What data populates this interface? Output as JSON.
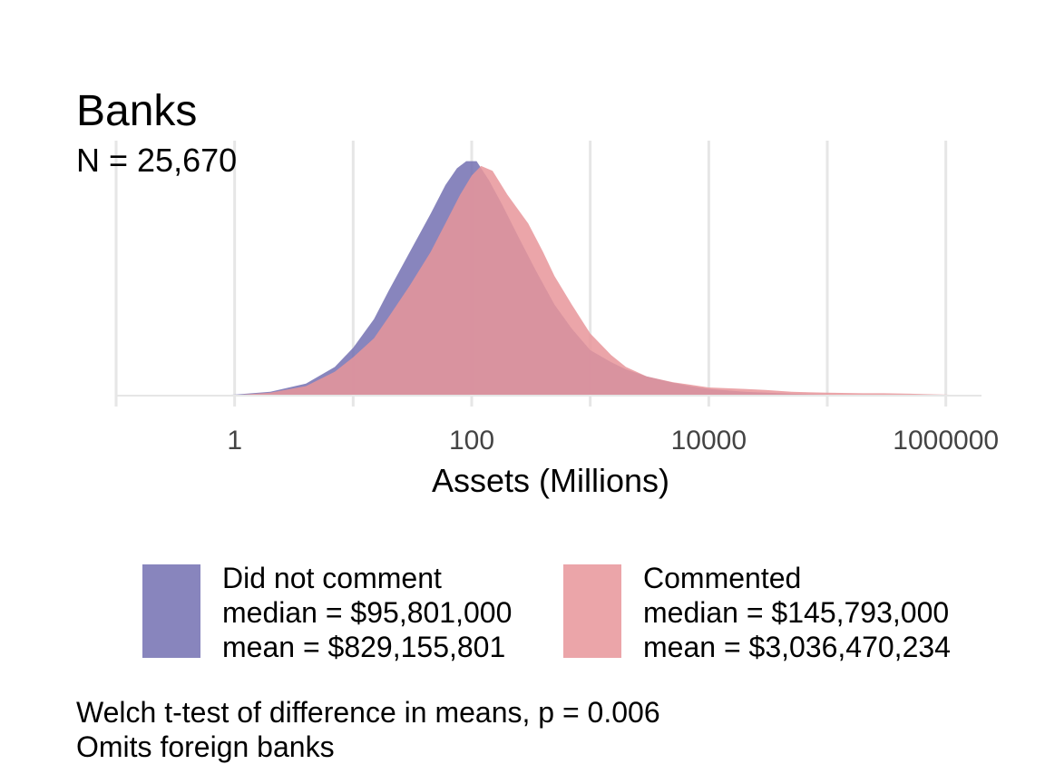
{
  "chart_data": {
    "type": "area",
    "title": "Banks",
    "subtitle": "N = 25,670",
    "xlabel": "Assets (Millions)",
    "ylabel": "",
    "x_scale": "log10",
    "xlim": [
      0.1,
      2000000
    ],
    "ylim": [
      0,
      0.55
    ],
    "x_ticks": [
      {
        "value": 1,
        "label": "1"
      },
      {
        "value": 100,
        "label": "100"
      },
      {
        "value": 10000,
        "label": "10000"
      },
      {
        "value": 1000000,
        "label": "1000000"
      }
    ],
    "x_minor_gridlines": [
      0.1,
      10,
      1000,
      100000
    ],
    "grid": true,
    "legend_position": "bottom",
    "series": [
      {
        "name": "Did not comment",
        "stats": [
          "median = $95,801,000",
          "mean = $829,155,801"
        ],
        "color": "#6e6aaf",
        "opacity": 0.82,
        "x": [
          0.1,
          0.3,
          1,
          2,
          4,
          7,
          10,
          15,
          20,
          30,
          45,
          60,
          75,
          90,
          110,
          140,
          180,
          250,
          350,
          500,
          700,
          1000,
          1500,
          2000,
          3000,
          5000,
          7000,
          10000,
          20000,
          50000,
          100000,
          300000,
          1000000,
          2000000
        ],
        "y": [
          0.0,
          0.0005,
          0.002,
          0.008,
          0.025,
          0.06,
          0.1,
          0.16,
          0.22,
          0.3,
          0.38,
          0.44,
          0.475,
          0.49,
          0.49,
          0.45,
          0.4,
          0.33,
          0.26,
          0.19,
          0.14,
          0.095,
          0.07,
          0.055,
          0.04,
          0.027,
          0.02,
          0.014,
          0.008,
          0.004,
          0.002,
          0.001,
          0.0005,
          0.0
        ]
      },
      {
        "name": "Commented",
        "stats": [
          "median = $145,793,000",
          "mean = $3,036,470,234"
        ],
        "color": "#e7959a",
        "opacity": 0.85,
        "x": [
          0.1,
          0.3,
          1,
          2,
          4,
          7,
          10,
          15,
          20,
          30,
          45,
          60,
          80,
          100,
          120,
          150,
          200,
          300,
          400,
          500,
          700,
          1000,
          1500,
          2000,
          3000,
          5000,
          10000,
          20000,
          30000,
          50000,
          100000,
          200000,
          300000,
          500000,
          1000000,
          2000000
        ],
        "y": [
          0.0,
          0.0,
          0.001,
          0.006,
          0.02,
          0.05,
          0.08,
          0.12,
          0.165,
          0.23,
          0.3,
          0.36,
          0.42,
          0.46,
          0.48,
          0.47,
          0.42,
          0.36,
          0.3,
          0.25,
          0.19,
          0.13,
          0.085,
          0.06,
          0.04,
          0.028,
          0.017,
          0.014,
          0.012,
          0.008,
          0.006,
          0.005,
          0.005,
          0.004,
          0.002,
          0.0
        ]
      }
    ],
    "caption": [
      "Welch t-test of difference in means, p = 0.006",
      "Omits foreign banks"
    ]
  }
}
